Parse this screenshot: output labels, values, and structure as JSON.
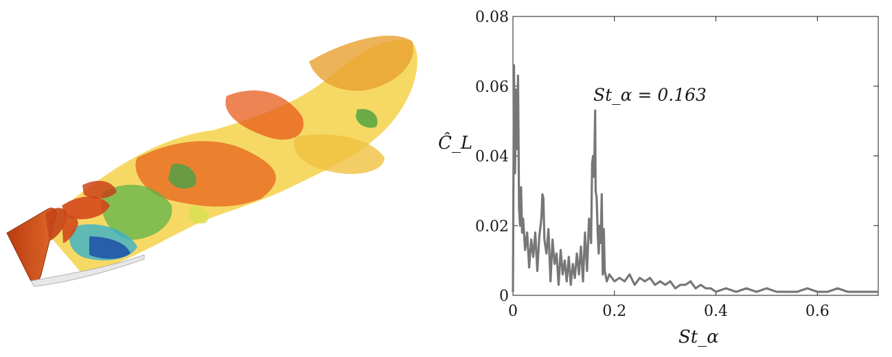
{
  "figure": {
    "left_panel": {
      "content": "isosurface-vortex-visualization"
    },
    "colors": {
      "line": "#777777",
      "axis": "#1a1a1a",
      "background": "#ffffff"
    }
  },
  "chart_data": {
    "type": "line",
    "xlabel": "St_α",
    "ylabel": "Ĉ_L",
    "annotation": "St_α = 0.163",
    "xlim": [
      0,
      0.72
    ],
    "ylim": [
      0,
      0.08
    ],
    "xticks": [
      0,
      0.2,
      0.4,
      0.6
    ],
    "xtick_labels": [
      "0",
      "0.2",
      "0.4",
      "0.6"
    ],
    "yticks": [
      0,
      0.02,
      0.04,
      0.06,
      0.08
    ],
    "ytick_labels": [
      "0",
      "0.02",
      "0.04",
      "0.06",
      "0.08"
    ],
    "grid": false,
    "series": [
      {
        "x": [
          0.0,
          0.002,
          0.004,
          0.006,
          0.008,
          0.01,
          0.012,
          0.014,
          0.016,
          0.018,
          0.02,
          0.024,
          0.028,
          0.032,
          0.036,
          0.04,
          0.044,
          0.048,
          0.052,
          0.056,
          0.058,
          0.06,
          0.062,
          0.066,
          0.07,
          0.074,
          0.078,
          0.082,
          0.086,
          0.09,
          0.094,
          0.098,
          0.102,
          0.106,
          0.11,
          0.114,
          0.118,
          0.122,
          0.126,
          0.13,
          0.134,
          0.138,
          0.142,
          0.146,
          0.15,
          0.154,
          0.156,
          0.158,
          0.16,
          0.162,
          0.163,
          0.165,
          0.167,
          0.169,
          0.171,
          0.173,
          0.175,
          0.177,
          0.179,
          0.181,
          0.185,
          0.19,
          0.2,
          0.21,
          0.22,
          0.23,
          0.24,
          0.25,
          0.26,
          0.27,
          0.28,
          0.29,
          0.3,
          0.31,
          0.32,
          0.33,
          0.34,
          0.35,
          0.36,
          0.37,
          0.38,
          0.39,
          0.4,
          0.42,
          0.44,
          0.46,
          0.48,
          0.5,
          0.52,
          0.54,
          0.56,
          0.58,
          0.6,
          0.62,
          0.64,
          0.66,
          0.68,
          0.7,
          0.72
        ],
        "y": [
          0.001,
          0.066,
          0.035,
          0.059,
          0.042,
          0.063,
          0.025,
          0.02,
          0.031,
          0.018,
          0.022,
          0.013,
          0.018,
          0.008,
          0.016,
          0.011,
          0.018,
          0.007,
          0.017,
          0.022,
          0.029,
          0.028,
          0.016,
          0.012,
          0.019,
          0.004,
          0.016,
          0.009,
          0.012,
          0.003,
          0.013,
          0.006,
          0.01,
          0.004,
          0.011,
          0.003,
          0.009,
          0.005,
          0.012,
          0.006,
          0.014,
          0.004,
          0.018,
          0.007,
          0.022,
          0.015,
          0.038,
          0.04,
          0.034,
          0.053,
          0.03,
          0.028,
          0.018,
          0.012,
          0.02,
          0.015,
          0.029,
          0.006,
          0.019,
          0.007,
          0.004,
          0.006,
          0.004,
          0.005,
          0.004,
          0.006,
          0.003,
          0.005,
          0.004,
          0.005,
          0.003,
          0.004,
          0.003,
          0.004,
          0.002,
          0.003,
          0.003,
          0.004,
          0.002,
          0.003,
          0.002,
          0.002,
          0.001,
          0.002,
          0.001,
          0.002,
          0.001,
          0.002,
          0.001,
          0.001,
          0.001,
          0.002,
          0.001,
          0.001,
          0.002,
          0.001,
          0.001,
          0.001,
          0.001
        ]
      }
    ]
  }
}
